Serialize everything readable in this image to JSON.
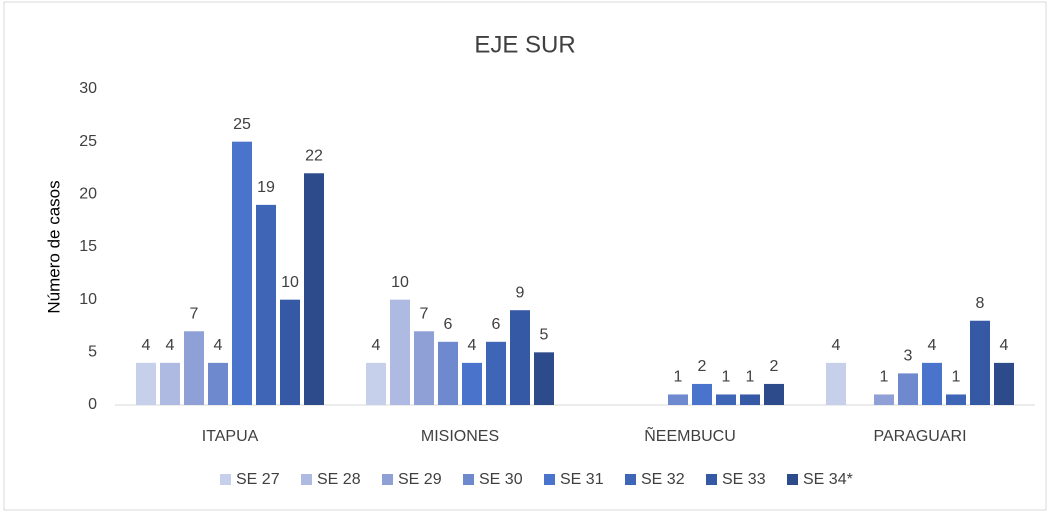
{
  "chart_data": {
    "type": "bar",
    "title": "EJE SUR",
    "y_label": "Número de casos",
    "categories": [
      "ITAPUA",
      "MISIONES",
      "ÑEEMBUCU",
      "PARAGUARI"
    ],
    "series": [
      {
        "name": "SE 27",
        "color": "#c7d0ea",
        "values": [
          4,
          4,
          null,
          4
        ]
      },
      {
        "name": "SE 28",
        "color": "#aebae1",
        "values": [
          4,
          10,
          null,
          null
        ]
      },
      {
        "name": "SE 29",
        "color": "#8fa0d6",
        "values": [
          7,
          7,
          null,
          1
        ]
      },
      {
        "name": "SE 30",
        "color": "#6f89cf",
        "values": [
          4,
          6,
          1,
          3
        ]
      },
      {
        "name": "SE 31",
        "color": "#4a74cc",
        "values": [
          25,
          4,
          2,
          4
        ]
      },
      {
        "name": "SE 32",
        "color": "#3f66b6",
        "values": [
          19,
          6,
          1,
          1
        ]
      },
      {
        "name": "SE 33",
        "color": "#3659a6",
        "values": [
          10,
          9,
          1,
          8
        ]
      },
      {
        "name": "SE 34*",
        "color": "#2d4b8b",
        "values": [
          22,
          5,
          2,
          4
        ]
      }
    ],
    "ylim": [
      0,
      30
    ],
    "yticks": [
      0,
      5,
      10,
      15,
      20,
      25,
      30
    ],
    "grid": false,
    "legend": "bottom"
  }
}
